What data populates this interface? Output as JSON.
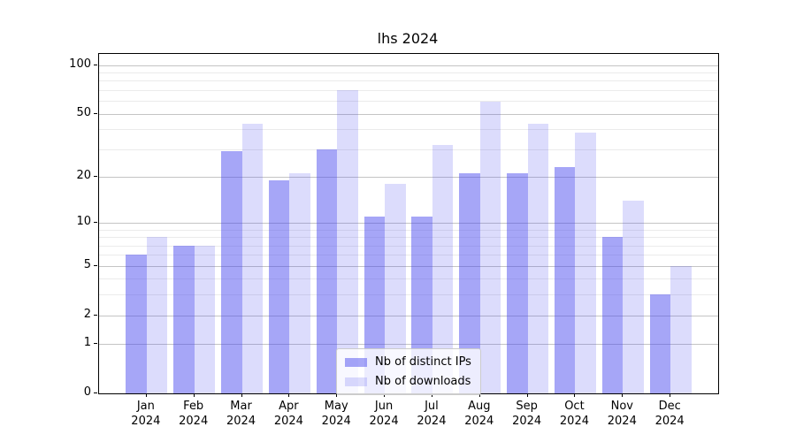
{
  "title": "lhs 2024",
  "colors": {
    "bar_ips": "rgba(68,68,238,0.48)",
    "bar_downloads": "rgba(68,68,238,0.19)",
    "grid_major": "#c4c4c4",
    "grid_minor": "#ebebeb",
    "axis": "#000000",
    "legend_border": "#cccccc",
    "legend_bg": "rgba(255,255,255,0.8)"
  },
  "legend": {
    "items": [
      "Nb of distinct IPs",
      "Nb of downloads"
    ]
  },
  "chart_data": {
    "type": "bar",
    "title": "lhs 2024",
    "categories": [
      "Jan 2024",
      "Feb 2024",
      "Mar 2024",
      "Apr 2024",
      "May 2024",
      "Jun 2024",
      "Jul 2024",
      "Aug 2024",
      "Sep 2024",
      "Oct 2024",
      "Nov 2024",
      "Dec 2024"
    ],
    "series": [
      {
        "name": "Nb of distinct IPs",
        "color_key": "bar_ips",
        "values": [
          6,
          7,
          29,
          19,
          30,
          11,
          11,
          21,
          21,
          23,
          8,
          3
        ]
      },
      {
        "name": "Nb of downloads",
        "color_key": "bar_downloads",
        "values": [
          8,
          7,
          43,
          21,
          70,
          18,
          32,
          59,
          43,
          38,
          14,
          5
        ]
      }
    ],
    "xlabel": "",
    "ylabel": "",
    "yscale": "log1p",
    "ylim": [
      0,
      117
    ],
    "yticks": [
      100,
      50,
      20,
      10,
      5,
      2,
      1,
      0
    ],
    "grid": true,
    "grid_major_values": [
      1,
      2,
      5,
      10,
      20,
      50,
      100
    ],
    "grid_minor_values": [
      3,
      4,
      6,
      7,
      8,
      9,
      30,
      40,
      60,
      70,
      80,
      90
    ],
    "legend_position": "lower center"
  }
}
